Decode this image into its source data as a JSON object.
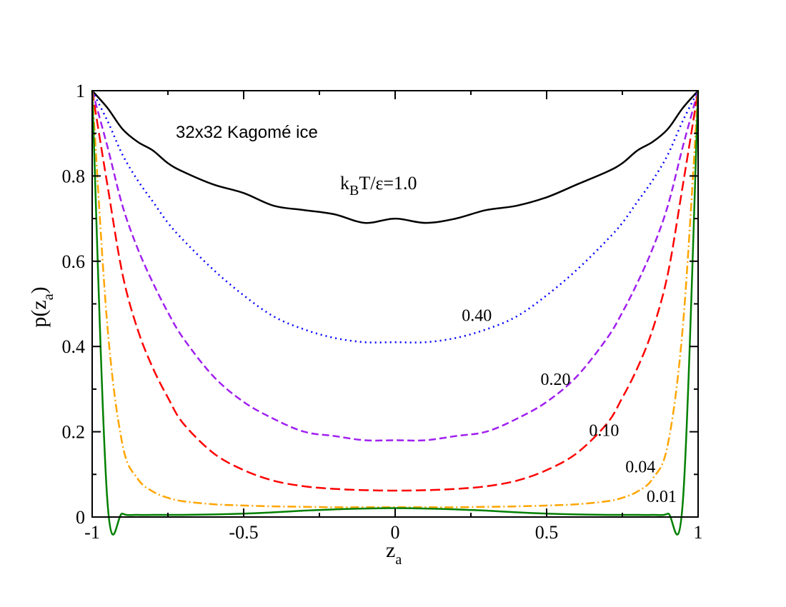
{
  "chart_data": {
    "type": "line",
    "annotation": "32x32 Kagomé ice",
    "temperature_label": {
      "k": "k",
      "sub": "B",
      "rest": "T/ε=1.0"
    },
    "xlabel": {
      "base": "z",
      "sub": "a"
    },
    "ylabel": {
      "prefix": "p(z",
      "sub": "a",
      "suffix": ")"
    },
    "xlim": [
      -1,
      1
    ],
    "ylim": [
      0,
      1
    ],
    "xticks": [
      -1,
      -0.5,
      0,
      0.5,
      1
    ],
    "xtick_labels": [
      "-1",
      "-0.5",
      "0",
      "0.5",
      "1"
    ],
    "yticks": [
      0,
      0.2,
      0.4,
      0.6,
      0.8,
      1
    ],
    "ytick_labels": [
      "0",
      "0.2",
      "0.4",
      "0.6",
      "0.8",
      "1"
    ],
    "x": [
      -1.0,
      -0.95,
      -0.9,
      -0.85,
      -0.8,
      -0.75,
      -0.7,
      -0.6,
      -0.5,
      -0.4,
      -0.3,
      -0.2,
      -0.1,
      0.0,
      0.1,
      0.2,
      0.3,
      0.4,
      0.5,
      0.6,
      0.7,
      0.75,
      0.8,
      0.85,
      0.9,
      0.95,
      1.0
    ],
    "series": [
      {
        "label": "",
        "color": "#000000",
        "dash": "",
        "values": [
          1.0,
          0.96,
          0.91,
          0.88,
          0.86,
          0.83,
          0.81,
          0.78,
          0.76,
          0.73,
          0.72,
          0.71,
          0.69,
          0.7,
          0.69,
          0.7,
          0.72,
          0.73,
          0.75,
          0.78,
          0.81,
          0.83,
          0.86,
          0.88,
          0.91,
          0.96,
          1.0
        ]
      },
      {
        "label": "0.40",
        "color": "#0000ff",
        "dash": "2,5",
        "values": [
          1.0,
          0.93,
          0.85,
          0.79,
          0.74,
          0.69,
          0.65,
          0.58,
          0.52,
          0.47,
          0.44,
          0.42,
          0.41,
          0.41,
          0.41,
          0.42,
          0.44,
          0.47,
          0.52,
          0.58,
          0.65,
          0.69,
          0.74,
          0.79,
          0.85,
          0.93,
          1.0
        ]
      },
      {
        "label": "0.20",
        "color": "#a020f0",
        "dash": "10,5",
        "values": [
          1.0,
          0.87,
          0.73,
          0.63,
          0.55,
          0.48,
          0.42,
          0.33,
          0.27,
          0.23,
          0.2,
          0.19,
          0.18,
          0.18,
          0.18,
          0.19,
          0.2,
          0.23,
          0.27,
          0.33,
          0.42,
          0.48,
          0.55,
          0.63,
          0.73,
          0.87,
          1.0
        ]
      },
      {
        "label": "0.10",
        "color": "#ff0000",
        "dash": "14,6",
        "values": [
          1.0,
          0.78,
          0.57,
          0.44,
          0.35,
          0.28,
          0.22,
          0.15,
          0.11,
          0.085,
          0.072,
          0.066,
          0.063,
          0.062,
          0.063,
          0.066,
          0.072,
          0.085,
          0.11,
          0.15,
          0.22,
          0.28,
          0.35,
          0.44,
          0.57,
          0.78,
          1.0
        ]
      },
      {
        "label": "0.04",
        "color": "#ffa500",
        "dash": "12,4,2,4",
        "values": [
          1.0,
          0.45,
          0.17,
          0.09,
          0.06,
          0.045,
          0.037,
          0.03,
          0.027,
          0.025,
          0.024,
          0.023,
          0.023,
          0.023,
          0.023,
          0.023,
          0.024,
          0.025,
          0.027,
          0.03,
          0.037,
          0.045,
          0.06,
          0.09,
          0.17,
          0.45,
          1.0
        ]
      },
      {
        "label": "0.01",
        "color": "#008000",
        "dash": "",
        "values": [
          1.0,
          0.04,
          0.008,
          0.005,
          0.005,
          0.005,
          0.005,
          0.006,
          0.008,
          0.011,
          0.015,
          0.018,
          0.02,
          0.021,
          0.02,
          0.018,
          0.015,
          0.011,
          0.008,
          0.006,
          0.005,
          0.005,
          0.005,
          0.005,
          0.008,
          0.04,
          1.0
        ]
      }
    ],
    "grid": false,
    "legend": "none"
  }
}
